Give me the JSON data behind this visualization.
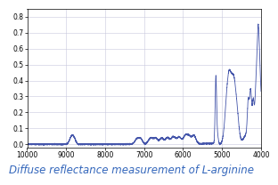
{
  "title": "Diffuse reflectance measurement of L-arginine",
  "title_color": "#3366bb",
  "title_fontsize": 8.5,
  "xmin": 10000,
  "xmax": 4000,
  "ymin": -0.02,
  "ymax": 0.85,
  "yticks": [
    0.0,
    0.1,
    0.2,
    0.3,
    0.4,
    0.5,
    0.6,
    0.7,
    0.8
  ],
  "xticks": [
    10000,
    9000,
    8000,
    7000,
    6000,
    5000,
    4000
  ],
  "line_color": "#4455aa",
  "line_width": 0.6,
  "bg_color": "#ffffff",
  "grid_color": "#c8c8dd",
  "tick_fontsize": 5.5
}
